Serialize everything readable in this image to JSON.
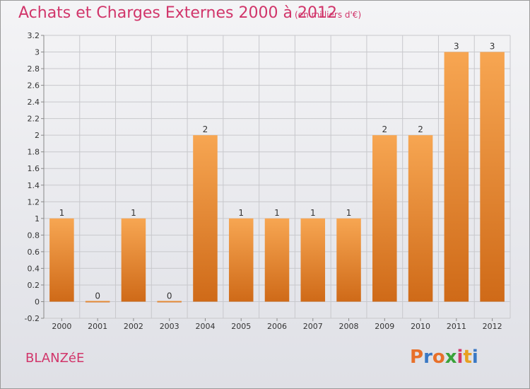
{
  "header": {
    "title": "Achats et Charges Externes 2000 à 2012",
    "subtitle": "(en milliers d'€)"
  },
  "footer": {
    "place": "BLANZéE",
    "logo_text": "Proxiti",
    "logo_colors": [
      "#e8702a",
      "#3a78c4",
      "#e8702a",
      "#3aa23a",
      "#d13a6b",
      "#e8a020",
      "#3a78c4"
    ]
  },
  "colors": {
    "bar_top": "#f7a652",
    "bar_bottom": "#cf6a18",
    "grid": "#c8c8cc",
    "axis_text": "#333333"
  },
  "chart_data": {
    "type": "bar",
    "title": "Achats et Charges Externes 2000 à 2012",
    "subtitle": "(en milliers d'€)",
    "categories": [
      "2000",
      "2001",
      "2002",
      "2003",
      "2004",
      "2005",
      "2006",
      "2007",
      "2008",
      "2009",
      "2010",
      "2011",
      "2012"
    ],
    "values": [
      1,
      0,
      1,
      0,
      2,
      1,
      1,
      1,
      1,
      2,
      2,
      3,
      3
    ],
    "data_labels": [
      "1",
      "0",
      "1",
      "0",
      "2",
      "1",
      "1",
      "1",
      "1",
      "2",
      "2",
      "3",
      "3"
    ],
    "ylim": [
      -0.2,
      3.2
    ],
    "yticks": [
      -0.2,
      0,
      0.2,
      0.4,
      0.6,
      0.8,
      1,
      1.2,
      1.4,
      1.6,
      1.8,
      2,
      2.2,
      2.4,
      2.6,
      2.8,
      3,
      3.2
    ],
    "ytick_labels": [
      "-0.2",
      "0",
      "0.2",
      "0.4",
      "0.6",
      "0.8",
      "1",
      "1.2",
      "1.4",
      "1.6",
      "1.8",
      "2",
      "2.2",
      "2.4",
      "2.6",
      "2.8",
      "3",
      "3.2"
    ],
    "grid": true,
    "legend": "none"
  }
}
